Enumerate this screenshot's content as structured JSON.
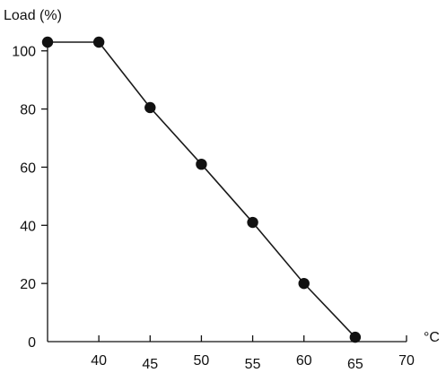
{
  "chart_data": {
    "type": "line",
    "title": "",
    "ylabel": "Load (%)",
    "xlabel": "°C",
    "x": [
      35,
      40,
      45,
      50,
      55,
      60,
      65
    ],
    "y": [
      103,
      103,
      80.5,
      61,
      41,
      20,
      1.5
    ],
    "xlim": [
      35,
      70
    ],
    "ylim": [
      0,
      103
    ],
    "xticks": [
      40,
      45,
      50,
      55,
      60,
      65,
      70
    ],
    "xtick_labels": [
      "40",
      "45",
      "50",
      "55",
      "60",
      "65",
      "70"
    ],
    "yticks": [
      0,
      20,
      40,
      60,
      80,
      100
    ],
    "ytick_labels": [
      "0",
      "20",
      "40",
      "60",
      "80",
      "100"
    ],
    "grid": false,
    "line_color": "#1a1a1a",
    "marker_color": "#111111"
  }
}
